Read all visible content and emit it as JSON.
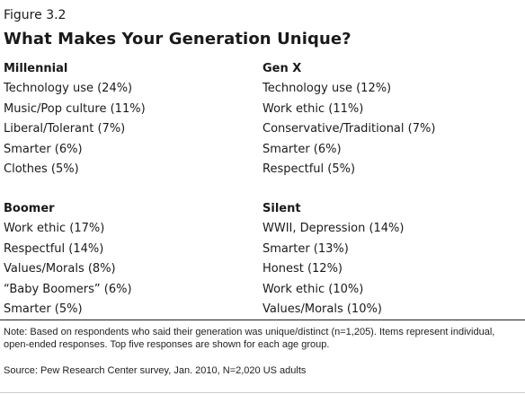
{
  "figure_label": "Figure 3.2",
  "title": "What Makes Your Generation Unique?",
  "groups": {
    "millennial": {
      "heading": "Millennial",
      "items": [
        "Technology use (24%)",
        "Music/Pop culture (11%)",
        "Liberal/Tolerant (7%)",
        "Smarter (6%)",
        "Clothes (5%)"
      ]
    },
    "genx": {
      "heading": "Gen X",
      "items": [
        "Technology use (12%)",
        "Work ethic (11%)",
        "Conservative/Traditional (7%)",
        "Smarter (6%)",
        "Respectful (5%)"
      ]
    },
    "boomer": {
      "heading": "Boomer",
      "items": [
        "Work ethic (17%)",
        "Respectful (14%)",
        "Values/Morals (8%)",
        "“Baby Boomers” (6%)",
        "Smarter (5%)"
      ]
    },
    "silent": {
      "heading": "Silent",
      "items": [
        "WWII, Depression (14%)",
        "Smarter (13%)",
        "Honest (12%)",
        "Work ethic (10%)",
        "Values/Morals (10%)"
      ]
    }
  },
  "note": "Note: Based on respondents who said their generation was unique/distinct (n=1,205). Items represent individual, open-ended responses. Top five responses are shown for each age group.",
  "source": "Source: Pew Research Center survey, Jan. 2010, N=2,020 US adults"
}
